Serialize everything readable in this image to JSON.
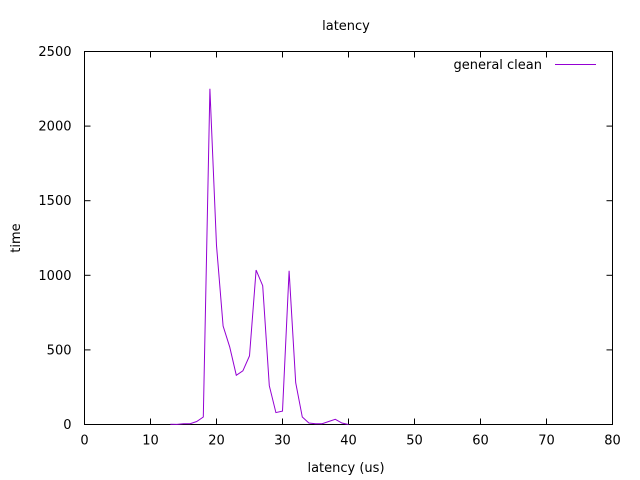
{
  "chart_data": {
    "type": "line",
    "title": "latency",
    "xlabel": "latency (us)",
    "ylabel": "time",
    "xlim": [
      0,
      80
    ],
    "ylim": [
      0,
      2500
    ],
    "xticks": [
      0,
      10,
      20,
      30,
      40,
      50,
      60,
      70,
      80
    ],
    "yticks": [
      0,
      500,
      1000,
      1500,
      2000,
      2500
    ],
    "grid": false,
    "legend_position": "top-right",
    "series": [
      {
        "name": "general clean",
        "color": "#9400d3",
        "x": [
          13,
          14,
          15,
          16,
          17,
          18,
          19,
          20,
          21,
          22,
          23,
          24,
          25,
          26,
          27,
          28,
          29,
          30,
          31,
          32,
          33,
          34,
          35,
          36,
          37,
          38,
          39,
          40
        ],
        "y": [
          2,
          1,
          5,
          5,
          20,
          50,
          2250,
          1200,
          660,
          520,
          330,
          360,
          460,
          1035,
          930,
          260,
          80,
          90,
          1030,
          280,
          50,
          10,
          5,
          5,
          20,
          35,
          10,
          0
        ]
      }
    ]
  }
}
